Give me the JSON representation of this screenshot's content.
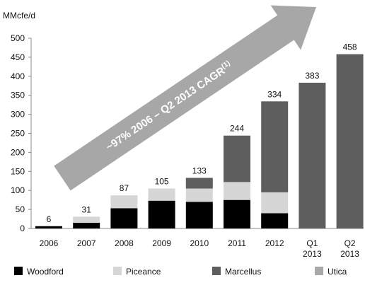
{
  "chart_data": {
    "type": "bar",
    "stacked": true,
    "ylabel": "MMcfe/d",
    "ylim": [
      0,
      500
    ],
    "yticks": [
      0,
      50,
      100,
      150,
      200,
      250,
      300,
      350,
      400,
      450,
      500
    ],
    "categories": [
      "2006",
      "2007",
      "2008",
      "2009",
      "2010",
      "2011",
      "2012",
      "Q1\n2013",
      "Q2\n2013"
    ],
    "totals": [
      6,
      31,
      87,
      105,
      133,
      244,
      334,
      383,
      458
    ],
    "series": [
      {
        "name": "Woodford",
        "color": "#000000",
        "values": [
          6,
          15,
          53,
          73,
          70,
          75,
          40,
          0,
          0
        ]
      },
      {
        "name": "Piceance",
        "color": "#d6d6d6",
        "values": [
          0,
          16,
          34,
          32,
          35,
          47,
          55,
          0,
          0
        ]
      },
      {
        "name": "Marcellus",
        "color": "#5e5e5e",
        "values": [
          0,
          0,
          0,
          0,
          28,
          122,
          239,
          383,
          458
        ]
      },
      {
        "name": "Utica",
        "color": "#a8a8a8",
        "values": [
          0,
          0,
          0,
          0,
          0,
          0,
          0,
          0,
          0
        ]
      }
    ],
    "annotation": "~97% 2006 – Q2 2013 CAGR",
    "annotation_sup": "(1)",
    "grid": false,
    "legend_position": "bottom"
  },
  "colors": {
    "arrow": "#a7a7a7",
    "axis": "#888888"
  }
}
